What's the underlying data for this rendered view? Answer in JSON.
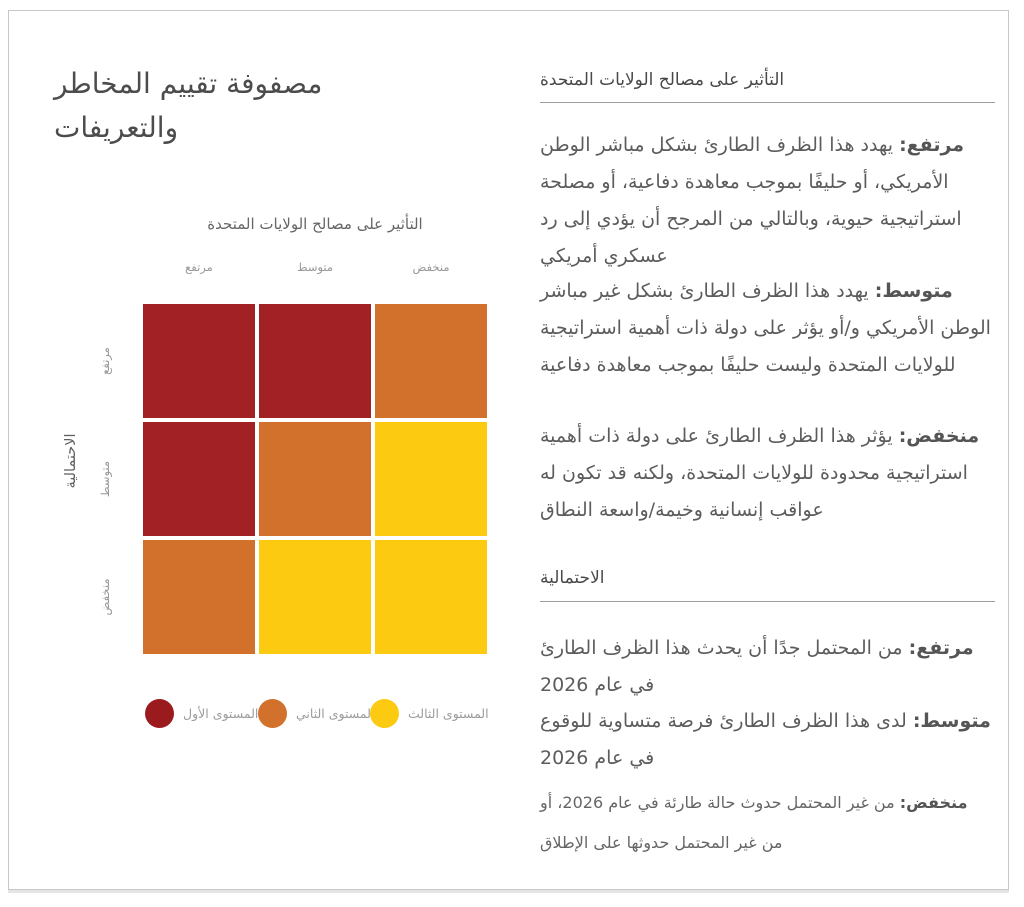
{
  "page": {
    "title": "مصفوفة تقييم المخاطر والتعريفات"
  },
  "chart_data": {
    "type": "heatmap",
    "title": "التأثير على مصالح الولايات المتحدة",
    "x_axis": {
      "title": "التأثير على مصالح الولايات المتحدة",
      "labels": [
        "مرتفع",
        "متوسط",
        "منخفض"
      ]
    },
    "y_axis": {
      "title": "الاحتمالية",
      "labels": [
        "مرتفع",
        "متوسط",
        "منخفض"
      ]
    },
    "cells": [
      [
        "level1",
        "level1",
        "level2"
      ],
      [
        "level1",
        "level2",
        "level3"
      ],
      [
        "level2",
        "level3",
        "level3"
      ]
    ],
    "colors": {
      "level1": "#a22125",
      "level2": "#d2712c",
      "level3": "#fcca10"
    },
    "legend_position": "bottom",
    "grid": false,
    "legend": [
      {
        "label": "المستوى الأول",
        "color": "#9a1a1e"
      },
      {
        "label": "المستوى الثاني",
        "color": "#d2712c"
      },
      {
        "label": "المستوى الثالث",
        "color": "#fcca10"
      }
    ]
  },
  "definitions": {
    "impact": {
      "heading": "التأثير على مصالح الولايات المتحدة",
      "items": [
        {
          "term": "مرتفع:",
          "text": "يهدد هذا الظرف الطارئ بشكل مباشر الوطن الأمريكي، أو حليفًا بموجب معاهدة دفاعية، أو مصلحة استراتيجية حيوية، وبالتالي من المرجح أن يؤدي إلى رد عسكري أمريكي"
        },
        {
          "term": "متوسط:",
          "text": "يهدد هذا الظرف الطارئ بشكل غير مباشر الوطن الأمريكي و/أو يؤثر على دولة ذات أهمية استراتيجية للولايات المتحدة وليست حليفًا بموجب معاهدة دفاعية"
        },
        {
          "term": "منخفض:",
          "text": "يؤثر هذا الظرف الطارئ على دولة ذات أهمية استراتيجية محدودة للولايات المتحدة، ولكنه قد تكون له عواقب إنسانية وخيمة/واسعة النطاق"
        }
      ]
    },
    "likelihood": {
      "heading": "الاحتمالية",
      "items": [
        {
          "term": "مرتفع:",
          "text": "من المحتمل جدًا أن يحدث هذا الظرف الطارئ في عام 2026"
        },
        {
          "term": "متوسط:",
          "text": "لدى هذا الظرف الطارئ فرصة متساوية للوقوع في عام 2026"
        },
        {
          "term": "منخفض:",
          "text": "من غير المحتمل حدوث حالة طارئة في عام 2026، أو من غير المحتمل حدوثها على الإطلاق"
        }
      ]
    }
  }
}
